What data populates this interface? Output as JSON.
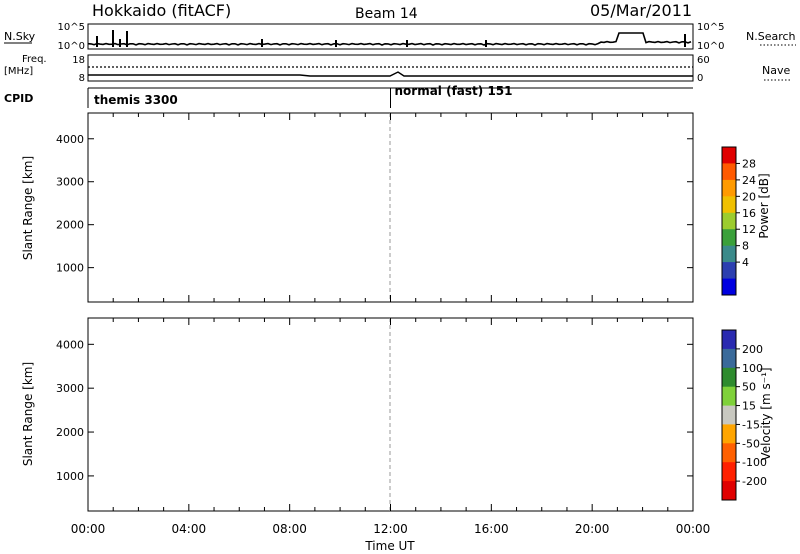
{
  "header": {
    "title": "Hokkaido (fitACF)",
    "beam": "Beam 14",
    "date": "05/Mar/2011"
  },
  "aux_panels": {
    "nsky_label": "N.Sky",
    "nsky_ticks": [
      "10^5",
      "10^0"
    ],
    "nsearch_label": "N.Search",
    "nsearch_ticks": [
      "10^5",
      "10^0"
    ],
    "freq_label_1": "Freq.",
    "freq_label_2": "[MHz]",
    "freq_ticks": [
      "18",
      "8"
    ],
    "nave_label": "Nave",
    "nave_ticks": [
      "60",
      "0"
    ],
    "cpid_label": "CPID",
    "cpid_modes": [
      {
        "name": "themis 3300",
        "start_hour": 0
      },
      {
        "name": "normal (fast) 151",
        "start_hour": 12
      }
    ]
  },
  "chart_data": [
    {
      "type": "heatmap",
      "name": "power",
      "ylabel": "Slant Range [km]",
      "yticks": [
        1000,
        2000,
        3000,
        4000
      ],
      "ylim": [
        200,
        4600
      ],
      "colorbar_label": "Power [dB]",
      "colorbar_ticks": [
        "28",
        "24",
        "20",
        "16",
        "12",
        "8",
        "4"
      ],
      "colorbar_colors": [
        "#e00000",
        "#ff5a00",
        "#ff9a00",
        "#f0c000",
        "#9ccc2e",
        "#3aa03a",
        "#3a8a8a",
        "#2c3fb0",
        "#0000e0"
      ]
    },
    {
      "type": "heatmap",
      "name": "velocity",
      "ylabel": "Slant Range [km]",
      "yticks": [
        1000,
        2000,
        3000,
        4000
      ],
      "ylim": [
        200,
        4600
      ],
      "colorbar_label": "Velocity [m s⁻¹]",
      "colorbar_ticks": [
        "200",
        "100",
        "50",
        "15",
        "-15",
        "-50",
        "-100",
        "-200"
      ],
      "colorbar_colors": [
        "#2a2ab0",
        "#3a6a9a",
        "#2e8b2e",
        "#7fd13a",
        "#c8c8c0",
        "#ffa500",
        "#ff6000",
        "#ff2000",
        "#e00000"
      ]
    }
  ],
  "xaxis": {
    "label": "Time UT",
    "ticks": [
      "00:00",
      "04:00",
      "08:00",
      "12:00",
      "16:00",
      "20:00",
      "00:00"
    ],
    "xlim_hours": [
      0,
      24
    ]
  }
}
